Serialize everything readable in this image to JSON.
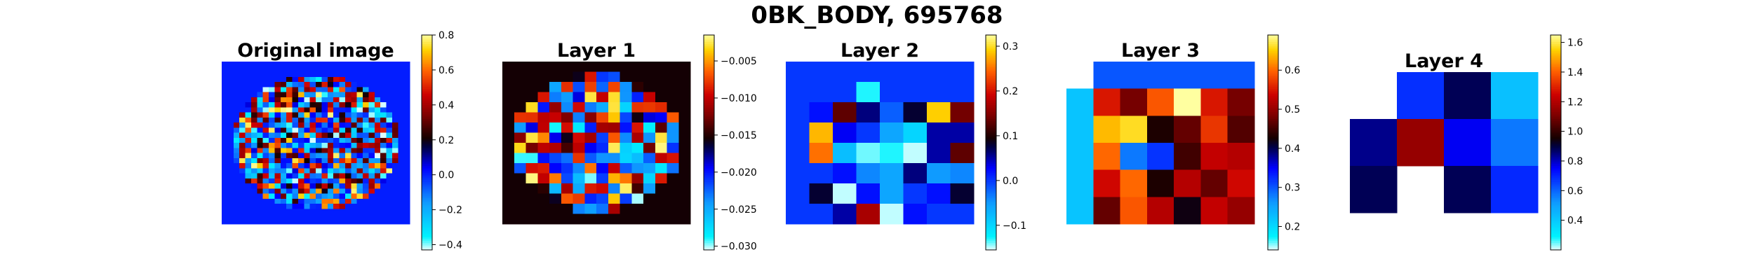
{
  "figure": {
    "title": "0BK_BODY, 695768"
  },
  "colormap": {
    "name": "jet-cyan-black-hot",
    "stops": [
      [
        0.0,
        "#e9ffff"
      ],
      [
        0.06,
        "#00f4ff"
      ],
      [
        0.22,
        "#0f9aff"
      ],
      [
        0.38,
        "#0000ff"
      ],
      [
        0.48,
        "#000040"
      ],
      [
        0.52,
        "#150000"
      ],
      [
        0.62,
        "#780000"
      ],
      [
        0.72,
        "#cc0000"
      ],
      [
        0.83,
        "#ff6000"
      ],
      [
        0.93,
        "#ffd200"
      ],
      [
        1.0,
        "#ffffa0"
      ]
    ]
  },
  "chart_data": [
    {
      "type": "heatmap",
      "title": "Original image",
      "grid": false,
      "colorbar": {
        "min": -0.43,
        "max": 0.8,
        "ticks": [
          "0.8",
          "0.6",
          "0.4",
          "0.2",
          "0.0",
          "−0.2",
          "−0.4"
        ]
      },
      "nrows": 32,
      "ncols": 32,
      "background": 0.0,
      "pattern": "noisy disk; cells inside a circle take mixed values from about -0.4 to 0.8, outside is 0.0"
    },
    {
      "type": "heatmap",
      "title": "Layer 1",
      "grid": false,
      "colorbar": {
        "min": -0.0305,
        "max": -0.0015,
        "ticks": [
          "−0.005",
          "−0.010",
          "−0.015",
          "−0.020",
          "−0.025",
          "−0.030"
        ]
      },
      "nrows": 16,
      "ncols": 16,
      "background": -0.0155,
      "pattern": "noisy disk; inside cells range about -0.030 to -0.002, outside is about -0.0155"
    },
    {
      "type": "heatmap",
      "title": "Layer 2",
      "grid": false,
      "colorbar": {
        "min": -0.155,
        "max": 0.325,
        "ticks": [
          "0.3",
          "0.2",
          "0.1",
          "0.0",
          "−0.1"
        ]
      },
      "nrows": 8,
      "ncols": 8,
      "values": [
        [
          0.0,
          0.0,
          0.0,
          0.0,
          0.0,
          0.0,
          0.0,
          0.0
        ],
        [
          0.0,
          0.0,
          0.0,
          -0.13,
          0.0,
          0.0,
          0.0,
          0.0
        ],
        [
          0.0,
          0.02,
          0.13,
          0.06,
          -0.02,
          0.08,
          0.29,
          0.14
        ],
        [
          0.0,
          0.28,
          0.03,
          0.0,
          -0.06,
          -0.1,
          0.05,
          0.05
        ],
        [
          0.0,
          0.25,
          -0.08,
          -0.14,
          -0.13,
          -0.15,
          0.05,
          0.13
        ],
        [
          0.0,
          0.0,
          0.02,
          -0.04,
          -0.06,
          0.06,
          -0.05,
          -0.04
        ],
        [
          0.0,
          0.08,
          -0.15,
          0.02,
          -0.06,
          0.0,
          0.02,
          0.08
        ],
        [
          0.0,
          0.0,
          0.05,
          0.17,
          -0.15,
          0.02,
          0.0,
          0.0
        ]
      ]
    },
    {
      "type": "heatmap",
      "title": "Layer 3",
      "grid": false,
      "colorbar": {
        "min": 0.14,
        "max": 0.69,
        "ticks": [
          "0.6",
          "0.5",
          "0.4",
          "0.3",
          "0.2"
        ]
      },
      "nrows": 6,
      "ncols": 7,
      "values": [
        [
          null,
          0.3,
          0.3,
          0.3,
          0.3,
          0.3,
          0.3
        ],
        [
          0.22,
          0.55,
          0.48,
          0.59,
          0.69,
          0.55,
          0.48
        ],
        [
          0.22,
          0.64,
          0.66,
          0.43,
          0.47,
          0.57,
          0.46
        ],
        [
          0.22,
          0.6,
          0.28,
          0.32,
          0.45,
          0.53,
          0.52
        ],
        [
          0.22,
          0.54,
          0.6,
          0.43,
          0.52,
          0.47,
          0.54
        ],
        [
          0.22,
          0.47,
          0.59,
          0.52,
          0.42,
          0.53,
          0.5
        ]
      ]
    },
    {
      "type": "heatmap",
      "title": "Layer 4",
      "grid": false,
      "colorbar": {
        "min": 0.2,
        "max": 1.65,
        "ticks": [
          "1.6",
          "1.4",
          "1.2",
          "1.0",
          "0.8",
          "0.6",
          "0.4"
        ]
      },
      "nrows": 3,
      "ncols": 4,
      "values": [
        [
          null,
          0.68,
          0.88,
          0.42
        ],
        [
          0.84,
          1.15,
          0.76,
          0.57
        ],
        [
          0.88,
          null,
          0.88,
          0.69
        ]
      ]
    }
  ]
}
